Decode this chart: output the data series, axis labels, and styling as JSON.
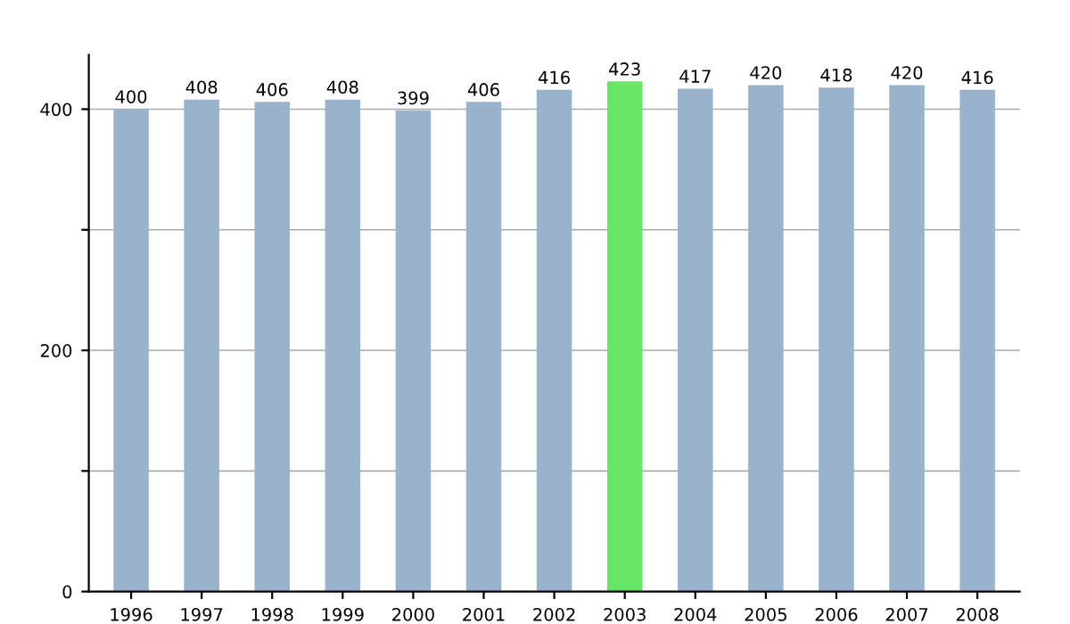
{
  "chart_data": {
    "type": "bar",
    "categories": [
      "1996",
      "1997",
      "1998",
      "1999",
      "2000",
      "2001",
      "2002",
      "2003",
      "2004",
      "2005",
      "2006",
      "2007",
      "2008"
    ],
    "values": [
      400,
      408,
      406,
      408,
      399,
      406,
      416,
      423,
      417,
      420,
      418,
      420,
      416
    ],
    "colors": [
      "#9ab3cc",
      "#9ab3cc",
      "#9ab3cc",
      "#9ab3cc",
      "#9ab3cc",
      "#9ab3cc",
      "#9ab3cc",
      "#66e566",
      "#9ab3cc",
      "#9ab3cc",
      "#9ab3cc",
      "#9ab3cc",
      "#9ab3cc"
    ],
    "ylim": [
      0,
      445
    ],
    "yticks": [
      0,
      {
        "value": 100,
        "label": null
      },
      200,
      {
        "value": 300,
        "label": null
      },
      400
    ],
    "grid": "y",
    "data_labels": true
  }
}
